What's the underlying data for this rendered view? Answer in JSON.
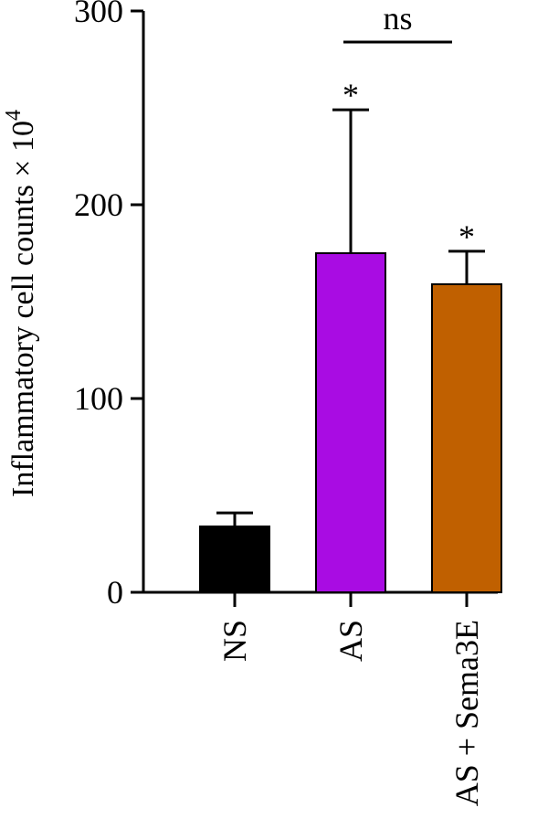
{
  "chart_data": {
    "type": "bar",
    "title": "",
    "xlabel": "",
    "ylabel": "Inflammatory cell counts × 10",
    "ylabel_superscript": "4",
    "ylim": [
      0,
      300
    ],
    "yticks": [
      0,
      100,
      200,
      300
    ],
    "categories": [
      "NS",
      "AS",
      "AS + Sema3E"
    ],
    "values": [
      34,
      175,
      159
    ],
    "errors": [
      7,
      74,
      17
    ],
    "colors": [
      "#000000",
      "#a90ce3",
      "#c06000"
    ],
    "significance": [
      "",
      "*",
      "*"
    ],
    "comparison": {
      "from": 1,
      "to": 2,
      "label": "ns"
    },
    "grid": false,
    "legend": false
  }
}
